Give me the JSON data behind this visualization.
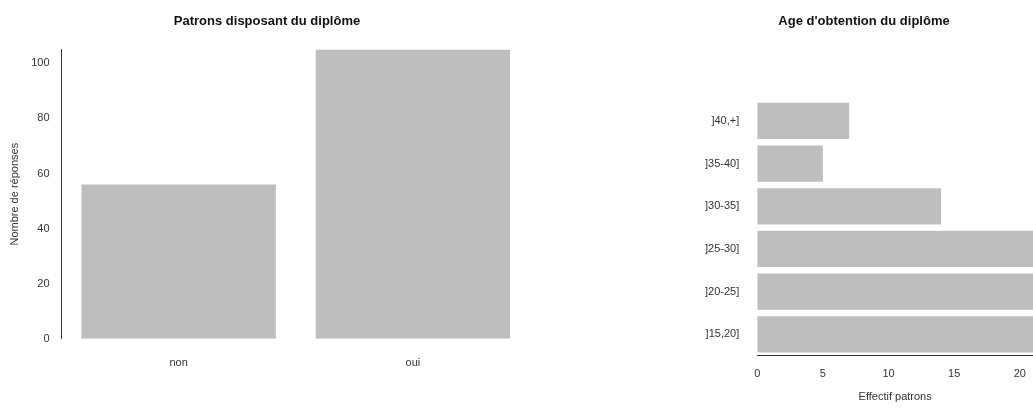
{
  "chart_data": [
    {
      "type": "bar",
      "title": "Patrons disposant du diplôme",
      "ylabel": "Nombre de réponses",
      "categories": [
        "non",
        "oui"
      ],
      "values": [
        56,
        105
      ],
      "color": "#bebebe",
      "ylim": [
        0,
        105
      ],
      "yticks": [
        0,
        20,
        40,
        60,
        80,
        100
      ],
      "grid": false,
      "legend": false
    },
    {
      "type": "bar",
      "orientation": "horizontal",
      "title": "Age d'obtention du diplôme",
      "xlabel": "Effectif patrons",
      "categories": [
        "]40,+]",
        "]35-40]",
        "]30-35]",
        "]25-30]",
        "]20-25]",
        "]15,20]"
      ],
      "values": [
        7,
        5,
        14,
        21,
        21,
        21
      ],
      "color": "#bebebe",
      "xlim": [
        0,
        21
      ],
      "xticks": [
        0,
        5,
        10,
        15,
        20
      ],
      "grid": false,
      "legend": false
    }
  ]
}
